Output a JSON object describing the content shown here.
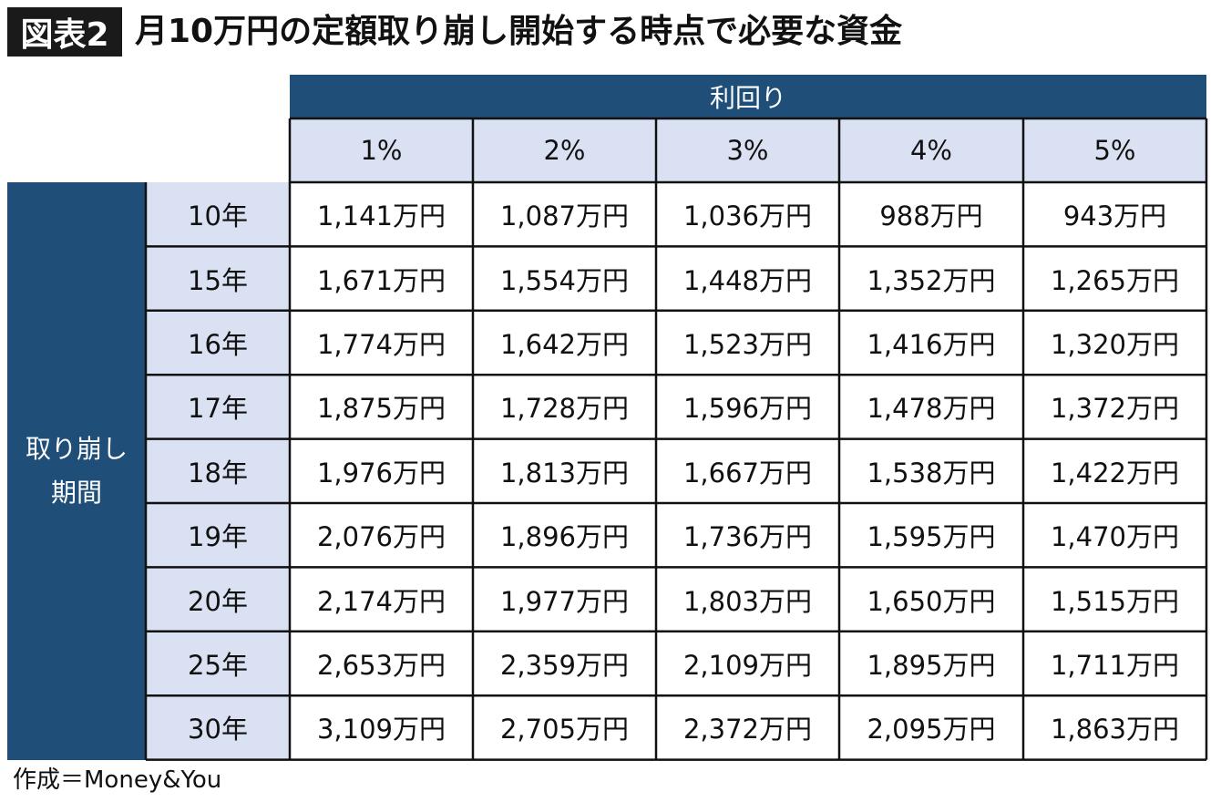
{
  "header": {
    "badge": "図表2",
    "title": "月10万円の定額取り崩し開始する時点で必要な資金"
  },
  "source": "作成＝Money&You",
  "chart_data": {
    "type": "table",
    "column_group_label": "利回り",
    "row_group_label_lines": [
      "取り崩し",
      "期間"
    ],
    "columns": [
      "1%",
      "2%",
      "3%",
      "4%",
      "5%"
    ],
    "rows": [
      {
        "label": "10年",
        "values": [
          "1,141万円",
          "1,087万円",
          "1,036万円",
          "988万円",
          "943万円"
        ]
      },
      {
        "label": "15年",
        "values": [
          "1,671万円",
          "1,554万円",
          "1,448万円",
          "1,352万円",
          "1,265万円"
        ]
      },
      {
        "label": "16年",
        "values": [
          "1,774万円",
          "1,642万円",
          "1,523万円",
          "1,416万円",
          "1,320万円"
        ]
      },
      {
        "label": "17年",
        "values": [
          "1,875万円",
          "1,728万円",
          "1,596万円",
          "1,478万円",
          "1,372万円"
        ]
      },
      {
        "label": "18年",
        "values": [
          "1,976万円",
          "1,813万円",
          "1,667万円",
          "1,538万円",
          "1,422万円"
        ]
      },
      {
        "label": "19年",
        "values": [
          "2,076万円",
          "1,896万円",
          "1,736万円",
          "1,595万円",
          "1,470万円"
        ]
      },
      {
        "label": "20年",
        "values": [
          "2,174万円",
          "1,977万円",
          "1,803万円",
          "1,650万円",
          "1,515万円"
        ]
      },
      {
        "label": "25年",
        "values": [
          "2,653万円",
          "2,359万円",
          "2,109万円",
          "1,895万円",
          "1,711万円"
        ]
      },
      {
        "label": "30年",
        "values": [
          "3,109万円",
          "2,705万円",
          "2,372万円",
          "2,095万円",
          "1,863万円"
        ]
      }
    ],
    "colors": {
      "header_band": "#1f4e79",
      "header_cell": "#d9e1f2",
      "grid_line": "#111111",
      "title_badge": "#1a1a1a"
    }
  }
}
